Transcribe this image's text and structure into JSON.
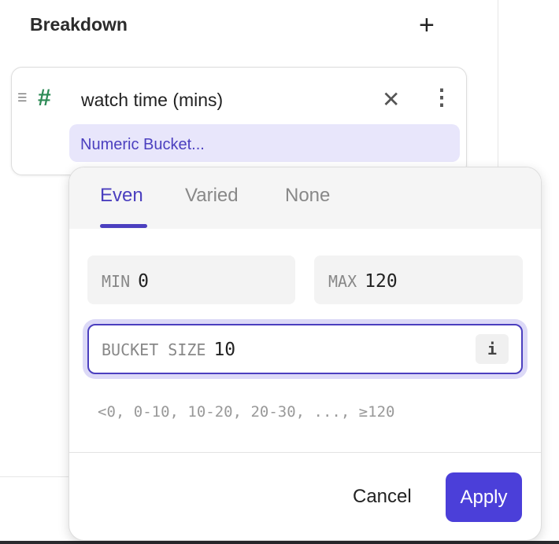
{
  "header": {
    "title": "Breakdown",
    "add_icon": "plus-icon"
  },
  "breakdown_item": {
    "drag_icon": "drag-handle-icon",
    "type_icon": "#",
    "field_name": "watch time (mins)",
    "bucket_label": "Numeric Bucket..."
  },
  "popover": {
    "tabs": [
      {
        "label": "Even",
        "active": true
      },
      {
        "label": "Varied",
        "active": false
      },
      {
        "label": "None",
        "active": false
      }
    ],
    "min": {
      "label": "MIN",
      "value": "0"
    },
    "max": {
      "label": "MAX",
      "value": "120"
    },
    "bucket_size": {
      "label": "BUCKET SIZE",
      "value": "10",
      "info_icon": "i"
    },
    "preview": "<0, 0-10, 10-20, 20-30, ..., ≥120",
    "cancel_label": "Cancel",
    "apply_label": "Apply"
  },
  "colors": {
    "accent": "#4b3fd9",
    "type_icon": "#2e8b57",
    "chip_bg": "#e8e6fb"
  }
}
